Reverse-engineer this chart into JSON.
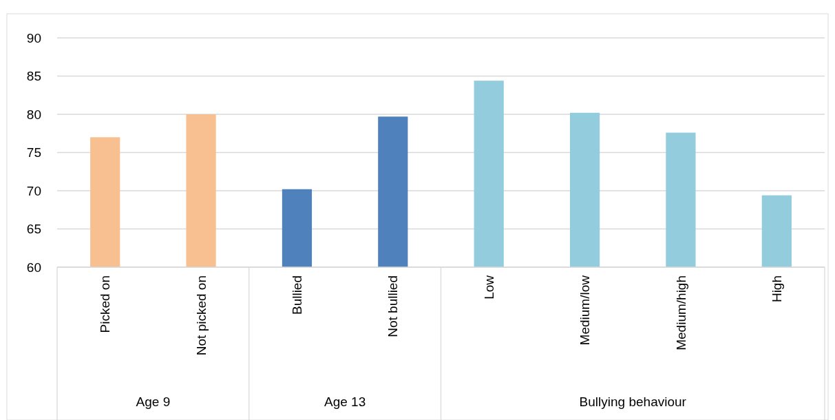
{
  "chart_data": {
    "type": "bar",
    "categories": [
      "Picked on",
      "Not picked on",
      "Bullied",
      "Not bullied",
      "Low",
      "Medium/low",
      "Medium/high",
      "High"
    ],
    "values": [
      77.0,
      80.0,
      70.2,
      79.7,
      84.4,
      80.2,
      77.6,
      69.4
    ],
    "colors": [
      "#f8c090",
      "#f8c090",
      "#4f81bd",
      "#4f81bd",
      "#93cddd",
      "#93cddd",
      "#93cddd",
      "#93cddd"
    ],
    "annotations": [
      "Age 9",
      "Age 13",
      "Bullying behaviour"
    ],
    "ylim": [
      60,
      90
    ],
    "yticks": [
      60,
      65,
      70,
      75,
      80,
      85,
      90
    ],
    "grid": "y"
  }
}
